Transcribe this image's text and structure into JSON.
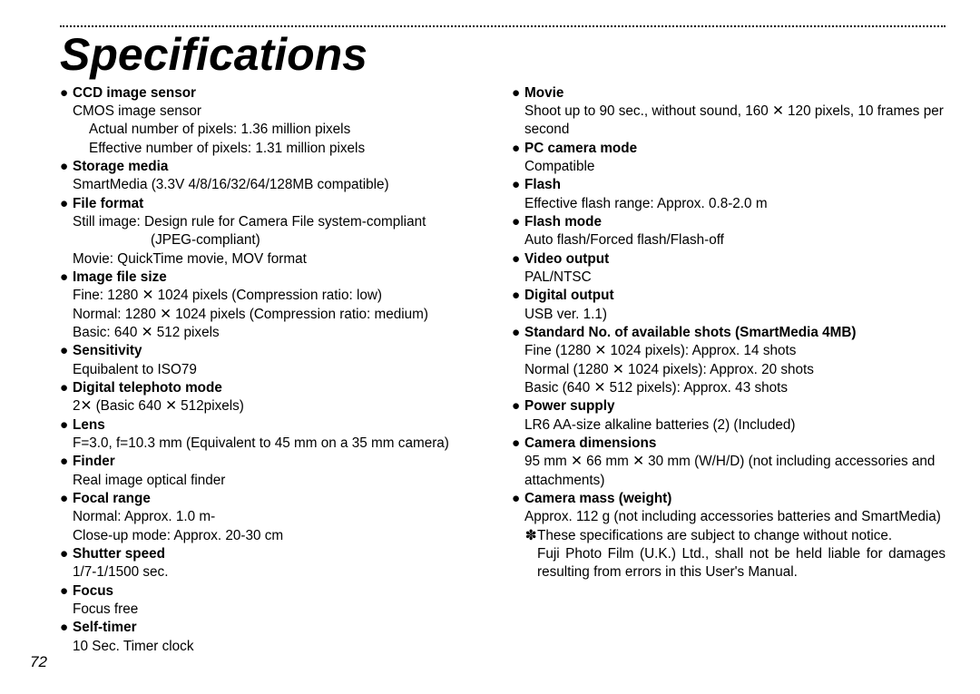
{
  "page": {
    "number": "72",
    "title": "Specifications",
    "bullet": "●",
    "star": "✽"
  },
  "left": [
    {
      "head": "CCD image sensor",
      "body": [
        "CMOS image sensor"
      ],
      "sub": [
        "Actual number of pixels: 1.36 million pixels",
        "Effective number of pixels: 1.31 million pixels"
      ]
    },
    {
      "head": "Storage media",
      "body": [
        "SmartMedia (3.3V 4/8/16/32/64/128MB compatible)"
      ]
    },
    {
      "head": "File format",
      "body": [
        "Still image: Design rule for Camera File system-compliant"
      ],
      "sub2": [
        "(JPEG-compliant)"
      ],
      "body2": [
        "Movie: QuickTime movie, MOV format"
      ]
    },
    {
      "head": "Image file size",
      "body": [
        "Fine: 1280 ✕ 1024 pixels (Compression ratio: low)",
        "Normal: 1280 ✕ 1024 pixels (Compression ratio: medium)",
        "Basic: 640 ✕ 512 pixels"
      ]
    },
    {
      "head": "Sensitivity",
      "body": [
        "Equibalent to ISO79"
      ]
    },
    {
      "head": "Digital telephoto mode",
      "body": [
        "2✕ (Basic 640 ✕ 512pixels)"
      ]
    },
    {
      "head": "Lens",
      "body": [
        "F=3.0, f=10.3 mm (Equivalent to 45 mm on a 35 mm camera)"
      ]
    },
    {
      "head": "Finder",
      "body": [
        "Real image optical finder"
      ]
    },
    {
      "head": "Focal range",
      "body": [
        "Normal: Approx. 1.0 m-",
        "Close-up mode: Approx. 20-30 cm"
      ]
    },
    {
      "head": "Shutter speed",
      "body": [
        "1/7-1/1500 sec."
      ]
    },
    {
      "head": "Focus",
      "body": [
        "Focus free"
      ]
    },
    {
      "head": "Self-timer",
      "body": [
        "10 Sec. Timer clock"
      ]
    }
  ],
  "right": [
    {
      "head": "Movie",
      "body": [
        "Shoot up to 90 sec., without sound, 160 ✕ 120 pixels, 10 frames per second"
      ]
    },
    {
      "head": "PC camera mode",
      "body": [
        "Compatible"
      ]
    },
    {
      "head": "Flash",
      "body": [
        "Effective flash range: Approx. 0.8-2.0 m"
      ]
    },
    {
      "head": "Flash mode",
      "body": [
        "Auto flash/Forced flash/Flash-off"
      ]
    },
    {
      "head": "Video output",
      "body": [
        "PAL/NTSC"
      ]
    },
    {
      "head": "Digital output",
      "body": [
        "USB ver. 1.1)"
      ]
    },
    {
      "head": "Standard No. of available shots (SmartMedia 4MB)",
      "body": [
        "Fine (1280 ✕ 1024 pixels): Approx. 14 shots",
        "Normal (1280 ✕ 1024 pixels): Approx. 20 shots",
        "Basic (640 ✕ 512 pixels): Approx. 43 shots"
      ]
    },
    {
      "head": "Power supply",
      "body": [
        "LR6 AA-size alkaline batteries (2) (Included)"
      ]
    },
    {
      "head": "Camera dimensions",
      "body": [
        "95 mm ✕ 66 mm ✕ 30 mm (W/H/D) (not including accessories and attachments)"
      ]
    },
    {
      "head": "Camera mass (weight)",
      "body": [
        "Approx. 112 g (not including accessories batteries and SmartMedia)"
      ],
      "just": true
    }
  ],
  "footnote": {
    "line1": "These specifications are subject to change without notice.",
    "line2": "Fuji Photo Film (U.K.) Ltd., shall not be held liable for damages resulting from errors in this User's Manual."
  }
}
